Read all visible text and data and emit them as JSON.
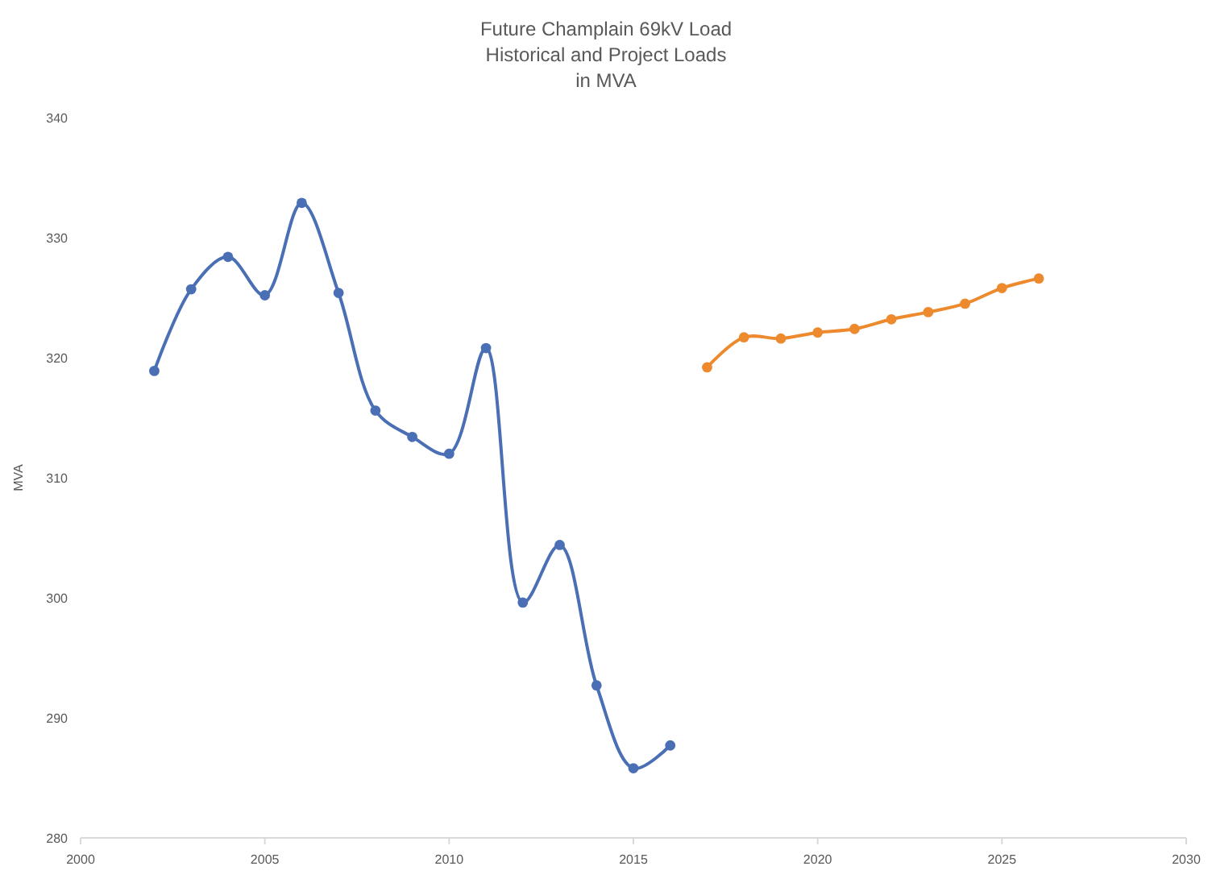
{
  "chart_data": {
    "type": "line",
    "title": "Future Champlain 69kV Load\nHistorical and Project Loads\nin MVA",
    "ylabel": "MVA",
    "xlim": [
      2000,
      2030
    ],
    "xticks": [
      2000,
      2005,
      2010,
      2015,
      2020,
      2025,
      2030
    ],
    "ylim": [
      280,
      340
    ],
    "yticks": [
      280,
      290,
      300,
      310,
      320,
      330,
      340
    ],
    "grid": false,
    "marker": "circle",
    "series": [
      {
        "color": "#4a6fb5",
        "x": [
          2002,
          2003,
          2004,
          2005,
          2006,
          2007,
          2008,
          2009,
          2010,
          2011,
          2012,
          2013,
          2014,
          2015,
          2016
        ],
        "values": [
          318.9,
          325.7,
          328.4,
          325.2,
          332.9,
          325.4,
          315.6,
          313.4,
          312.0,
          320.8,
          299.6,
          304.4,
          292.7,
          285.8,
          287.7
        ]
      },
      {
        "color": "#ed8a2e",
        "x": [
          2017,
          2018,
          2019,
          2020,
          2021,
          2022,
          2023,
          2024,
          2025,
          2026
        ],
        "values": [
          319.2,
          321.7,
          321.6,
          322.1,
          322.4,
          323.2,
          323.8,
          324.5,
          325.8,
          326.6
        ]
      }
    ]
  }
}
